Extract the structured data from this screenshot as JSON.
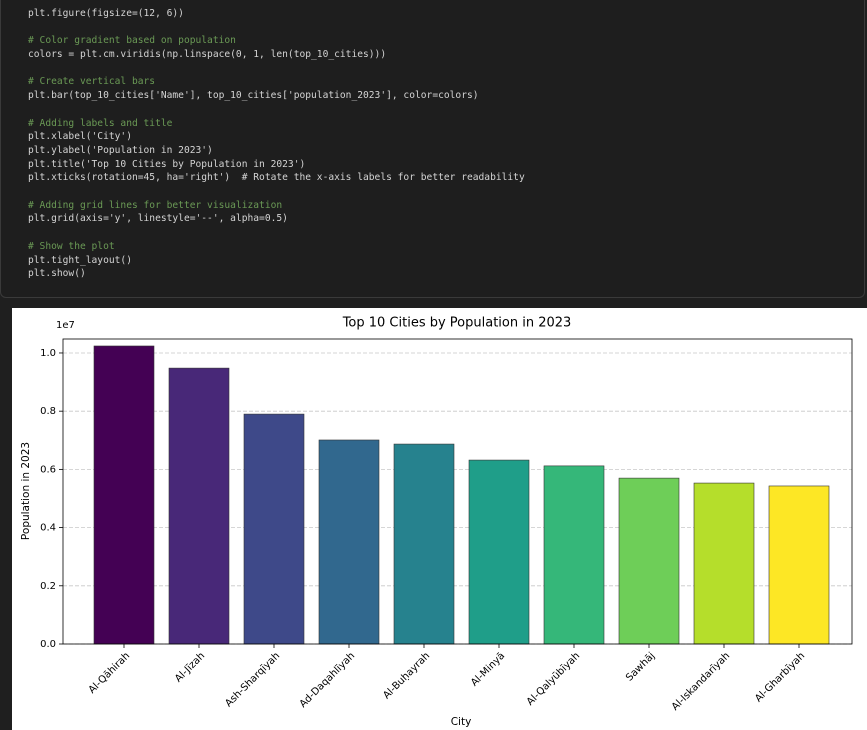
{
  "code_cell": {
    "blocks": [
      [
        "plt.figure(figsize=(12, 6))"
      ],
      [
        "# Color gradient based on population",
        "colors = plt.cm.viridis(np.linspace(0, 1, len(top_10_cities)))"
      ],
      [
        "# Create vertical bars",
        "plt.bar(top_10_cities['Name'], top_10_cities['population_2023'], color=colors)"
      ],
      [
        "# Adding labels and title",
        "plt.xlabel('City')",
        "plt.ylabel('Population in 2023')",
        "plt.title('Top 10 Cities by Population in 2023')",
        "plt.xticks(rotation=45, ha='right')  # Rotate the x-axis labels for better readability"
      ],
      [
        "# Adding grid lines for better visualization",
        "plt.grid(axis='y', linestyle='--', alpha=0.5)"
      ],
      [
        "# Show the plot",
        "plt.tight_layout()",
        "plt.show()"
      ]
    ]
  },
  "chart_data": {
    "type": "bar",
    "title": "Top 10 Cities by Population in 2023",
    "x_label": "City",
    "y_label": "Population in 2023",
    "offset_text": "1e7",
    "categories": [
      "Al-Qāhirah",
      "Al-Jīzah",
      "Ash-Sharqīyah",
      "Ad-Daqahlīyah",
      "Al-Buḥayrah",
      "Al-Minyā",
      "Al-Qalyūbīyah",
      "Sawhāj",
      "Al-Iskandarīyah",
      "Al-Gharbīyah"
    ],
    "values": [
      1.024,
      0.948,
      0.79,
      0.701,
      0.687,
      0.632,
      0.612,
      0.57,
      0.553,
      0.543
    ],
    "colors": [
      "#440154",
      "#482878",
      "#3e4989",
      "#31688e",
      "#26828e",
      "#1f9e89",
      "#35b779",
      "#6ece58",
      "#b5de2b",
      "#fde725"
    ],
    "ylim": [
      0,
      1.048
    ],
    "yticks": [
      {
        "value": 0,
        "label": "0.0"
      },
      0.2,
      0.4,
      0.6,
      0.8,
      {
        "value": 1,
        "label": "1.0"
      }
    ],
    "grid": true
  }
}
